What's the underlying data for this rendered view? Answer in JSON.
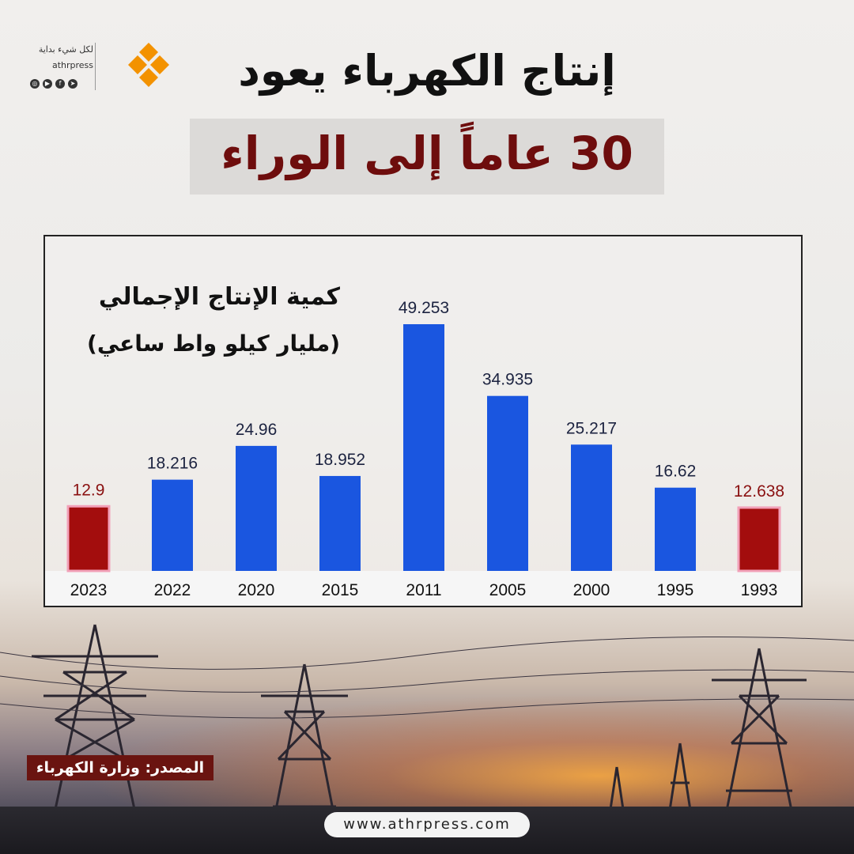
{
  "header": {
    "title_line1": "إنتاج الكهرباء يعود",
    "title_line2": "30 عاماً إلى الوراء"
  },
  "logo": {
    "tagline": "لكل شيء بداية",
    "site": "athrpress",
    "socials": [
      "instagram-icon",
      "youtube-icon",
      "facebook-icon",
      "telegram-icon"
    ],
    "brand_color": "#f39200"
  },
  "chart_data": {
    "type": "bar",
    "title": "كمية الإنتاج الإجمالي",
    "subtitle": "(مليار كيلو واط ساعي)",
    "categories": [
      "2023",
      "2022",
      "2020",
      "2015",
      "2011",
      "2005",
      "2000",
      "1995",
      "1993"
    ],
    "values": [
      12.9,
      18.216,
      24.96,
      18.952,
      49.253,
      34.935,
      25.217,
      16.62,
      12.638
    ],
    "value_labels": [
      "12.9",
      "18.216",
      "24.96",
      "18.952",
      "49.253",
      "34.935",
      "25.217",
      "16.62",
      "12.638"
    ],
    "highlighted": [
      "2023",
      "1993"
    ],
    "colors": {
      "default": "#1a56e0",
      "highlight": "#a30d0d",
      "label_default": "#1c2340",
      "label_highlight": "#8a1010"
    },
    "ylim": [
      0,
      49.253
    ],
    "grid": false
  },
  "footer": {
    "source": "المصدر: وزارة الكهرباء",
    "website": "www.athrpress.com"
  }
}
